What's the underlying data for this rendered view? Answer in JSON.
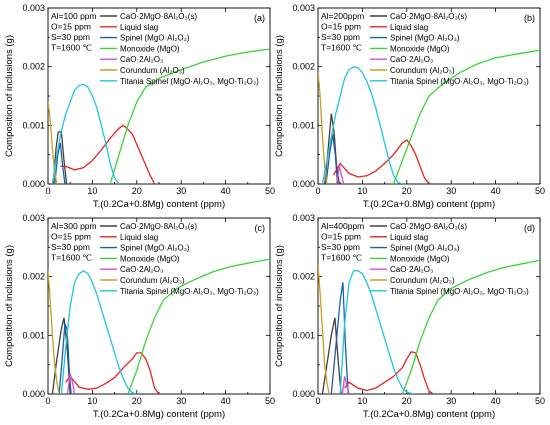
{
  "chart_data": [
    {
      "type": "line",
      "panel_label": "(a)",
      "conditions": [
        "Al=100 ppm",
        "O=15 ppm",
        "S=30 ppm",
        "T=1600 ℃"
      ],
      "xlabel": "T.(0.2Ca+0.8Mg) content (ppm)",
      "ylabel": "Composition of inclusions (g)",
      "xlim": [
        0,
        50
      ],
      "ylim": [
        0,
        0.003
      ],
      "x_ticks": [
        "0",
        "10",
        "20",
        "30",
        "40",
        "50"
      ],
      "y_ticks": [
        "0.000",
        "0.001",
        "0.002",
        "0.003"
      ],
      "legend_placement": "top-center",
      "series": [
        {
          "name": "CaO·2MgO·8Al₂O₃(s)",
          "color": "#404040",
          "x": [
            1.2,
            1.8,
            2.3,
            3.0,
            3.6,
            4.2
          ],
          "y": [
            0,
            0.0006,
            0.00088,
            0.0009,
            0.0004,
            0
          ]
        },
        {
          "name": "Liquid slag",
          "color": "#e8231f",
          "x": [
            2.8,
            4,
            6,
            8,
            10,
            12,
            14,
            16,
            17,
            19,
            21,
            23,
            24
          ],
          "y": [
            0.0003,
            0.0003,
            0.00024,
            0.00028,
            0.0004,
            0.00058,
            0.00078,
            0.00095,
            0.001,
            0.00085,
            0.0005,
            0.00015,
            0
          ]
        },
        {
          "name": "Spinel (MgO·Al₂O₃)",
          "color": "#1f5fa8",
          "x": [
            1.5,
            2.2,
            2.8,
            3.3,
            3.8
          ],
          "y": [
            0,
            0.0005,
            0.0007,
            0.0003,
            0
          ]
        },
        {
          "name": "Monoxide (MgO)",
          "color": "#3fd23a",
          "x": [
            14,
            16,
            18,
            20,
            22,
            25,
            30,
            35,
            40,
            45,
            50
          ],
          "y": [
            0,
            0.0005,
            0.001,
            0.0014,
            0.00165,
            0.0018,
            0.00195,
            0.00208,
            0.00218,
            0.00225,
            0.0023
          ]
        },
        {
          "name": "CaO·2Al₂O₃",
          "color": "#d04fd8",
          "x": [],
          "y": []
        },
        {
          "name": "Corundum (Al₂O₃)",
          "color": "#c9a020",
          "x": [
            0,
            0.5,
            1,
            1.5,
            2
          ],
          "y": [
            0.0014,
            0.0011,
            0.0006,
            0.0002,
            0
          ]
        },
        {
          "name": "Titania Spinel (MgO·Al₂O₃, MgO·Ti₂O₃)",
          "color": "#21c5e0",
          "x": [
            1,
            2,
            3,
            4,
            5,
            6,
            7,
            8,
            9,
            10,
            11,
            12,
            13,
            14,
            15,
            16
          ],
          "y": [
            0,
            0.0005,
            0.0009,
            0.0012,
            0.0014,
            0.0016,
            0.00168,
            0.0017,
            0.00165,
            0.0015,
            0.0013,
            0.001,
            0.0007,
            0.00035,
            0.0001,
            0
          ]
        }
      ]
    },
    {
      "type": "line",
      "panel_label": "(b)",
      "conditions": [
        "Al=200ppm",
        "O=15 ppm",
        "S=30 ppm",
        "T=1600 ℃"
      ],
      "xlabel": "T.(0.2Ca+0.8Mg) content (ppm)",
      "ylabel": "Composition of inclusions (g)",
      "xlim": [
        0,
        50
      ],
      "ylim": [
        0,
        0.003
      ],
      "x_ticks": [
        "0",
        "10",
        "20",
        "30",
        "40",
        "50"
      ],
      "y_ticks": [
        "0.000",
        "0.001",
        "0.002",
        "0.003"
      ],
      "legend_placement": "top-center",
      "series": [
        {
          "name": "CaO·2MgO·8Al₂O₃(s)",
          "color": "#404040",
          "x": [
            1.5,
            2.3,
            3.0,
            3.6,
            4.2,
            4.8
          ],
          "y": [
            0,
            0.0006,
            0.0012,
            0.0009,
            0.0003,
            0
          ]
        },
        {
          "name": "Liquid slag",
          "color": "#e8231f",
          "x": [
            3.5,
            5,
            7,
            9,
            11,
            13,
            15,
            17,
            19,
            20,
            21,
            22,
            23,
            24,
            25
          ],
          "y": [
            0.00015,
            0.00035,
            0.00018,
            0.00012,
            0.00014,
            0.00022,
            0.00035,
            0.0005,
            0.0007,
            0.00075,
            0.00065,
            0.0005,
            0.0003,
            0.0001,
            0
          ]
        },
        {
          "name": "Spinel (MgO·Al₂O₃)",
          "color": "#1f5fa8",
          "x": [
            1.8,
            2.6,
            3.3,
            3.9,
            4.4
          ],
          "y": [
            0,
            0.0005,
            0.00085,
            0.0005,
            0
          ]
        },
        {
          "name": "Monoxide (MgO)",
          "color": "#3fd23a",
          "x": [
            17,
            19,
            21,
            23,
            25,
            28,
            32,
            36,
            40,
            45,
            50
          ],
          "y": [
            0,
            0.0004,
            0.0008,
            0.0012,
            0.0015,
            0.0017,
            0.0019,
            0.00205,
            0.00215,
            0.00222,
            0.00228
          ]
        },
        {
          "name": "CaO·2Al₂O₃",
          "color": "#d04fd8",
          "x": [
            4.2,
            4.8,
            5.3,
            5.8
          ],
          "y": [
            0,
            0.0003,
            0.00015,
            0
          ]
        },
        {
          "name": "Corundum (Al₂O₃)",
          "color": "#c9a020",
          "x": [
            0,
            0.5,
            1,
            1.5,
            2
          ],
          "y": [
            0.0019,
            0.0015,
            0.0008,
            0.0003,
            0
          ]
        },
        {
          "name": "Titania Spinel (MgO·Al₂O₃, MgO·Ti₂O₃)",
          "color": "#21c5e0",
          "x": [
            1,
            2,
            3,
            4,
            5,
            6,
            7,
            8,
            9,
            10,
            11,
            12,
            13,
            14,
            15,
            16,
            17,
            18,
            19
          ],
          "y": [
            0,
            0.0004,
            0.0008,
            0.0012,
            0.0015,
            0.0018,
            0.00195,
            0.002,
            0.00198,
            0.0019,
            0.00175,
            0.00155,
            0.0013,
            0.001,
            0.0007,
            0.0004,
            0.00015,
            3e-05,
            0
          ]
        }
      ]
    },
    {
      "type": "line",
      "panel_label": "(c)",
      "conditions": [
        "Al=300 ppm",
        "O=15 ppm",
        "S=30 ppm",
        "T=1600 ℃"
      ],
      "xlabel": "T.(0.2Ca+0.8Mg) content (ppm)",
      "ylabel": "Composition of inclusions (g)",
      "xlim": [
        0,
        50
      ],
      "ylim": [
        0,
        0.003
      ],
      "x_ticks": [
        "0",
        "10",
        "20",
        "30",
        "40",
        "50"
      ],
      "y_ticks": [
        "0.000",
        "0.001",
        "0.002",
        "0.003"
      ],
      "legend_placement": "top-center",
      "series": [
        {
          "name": "CaO·2MgO·8Al₂O₃(s)",
          "color": "#404040",
          "x": [
            1,
            2,
            3,
            3.6,
            4.3,
            5
          ],
          "y": [
            0,
            0.0006,
            0.0011,
            0.0013,
            0.0008,
            0
          ]
        },
        {
          "name": "Liquid slag",
          "color": "#e8231f",
          "x": [
            4,
            5,
            7,
            9,
            11,
            13,
            15,
            17,
            19,
            20,
            21,
            22,
            23,
            24,
            25
          ],
          "y": [
            0.0002,
            0.0003,
            0.00012,
            8e-05,
            0.0001,
            0.00018,
            0.00028,
            0.00045,
            0.0006,
            0.0007,
            0.0007,
            0.0006,
            0.0004,
            0.0001,
            0
          ]
        },
        {
          "name": "Spinel (MgO·Al₂O₃)",
          "color": "#1f5fa8",
          "x": [
            2.5,
            3.2,
            3.8,
            4.3,
            4.8,
            5.2
          ],
          "y": [
            0,
            0.0006,
            0.0012,
            0.0011,
            0.0004,
            0
          ]
        },
        {
          "name": "Monoxide (MgO)",
          "color": "#3fd23a",
          "x": [
            18,
            20,
            22,
            24,
            26,
            29,
            33,
            37,
            41,
            45,
            50
          ],
          "y": [
            0,
            0.0004,
            0.0009,
            0.0013,
            0.0016,
            0.0018,
            0.00195,
            0.00208,
            0.00217,
            0.00223,
            0.0023
          ]
        },
        {
          "name": "CaO·2Al₂O₃",
          "color": "#d04fd8",
          "x": [
            4.4,
            5,
            5.5,
            6
          ],
          "y": [
            0,
            0.00035,
            0.0002,
            0
          ]
        },
        {
          "name": "Corundum (Al₂O₃)",
          "color": "#c9a020",
          "x": [
            0,
            0.5,
            1,
            1.5,
            2,
            2.5
          ],
          "y": [
            0.0021,
            0.0016,
            0.001,
            0.0005,
            0.0002,
            0
          ]
        },
        {
          "name": "Titania Spinel (MgO·Al₂O₃, MgO·Ti₂O₃)",
          "color": "#21c5e0",
          "x": [
            3,
            4,
            5,
            6,
            7,
            8,
            9,
            10,
            11,
            12,
            13,
            14,
            15,
            16,
            17,
            18,
            19,
            20
          ],
          "y": [
            0,
            0.0008,
            0.0015,
            0.0019,
            0.00205,
            0.0021,
            0.00205,
            0.0019,
            0.0017,
            0.00145,
            0.0012,
            0.00095,
            0.0007,
            0.00045,
            0.00025,
            0.0001,
            2e-05,
            0
          ]
        }
      ]
    },
    {
      "type": "line",
      "panel_label": "(d)",
      "conditions": [
        "Al=400ppm",
        "O=15 ppm",
        "S=30 ppm",
        "T=1600 ℃"
      ],
      "xlabel": "T.(0.2Ca+0.8Mg) content (ppm)",
      "ylabel": "Composition of inclusions (g)",
      "xlim": [
        0,
        50
      ],
      "ylim": [
        0,
        0.003
      ],
      "x_ticks": [
        "0",
        "10",
        "20",
        "30",
        "40",
        "50"
      ],
      "y_ticks": [
        "0.000",
        "0.001",
        "0.002",
        "0.003"
      ],
      "legend_placement": "top-center",
      "series": [
        {
          "name": "CaO·2MgO·8Al₂O₃(s)",
          "color": "#404040",
          "x": [
            1,
            2,
            3,
            3.8,
            4.5,
            5.2
          ],
          "y": [
            0,
            0.0005,
            0.001,
            0.0013,
            0.0006,
            0
          ]
        },
        {
          "name": "Liquid slag",
          "color": "#e8231f",
          "x": [
            6,
            7,
            9,
            11,
            13,
            15,
            17,
            19,
            20,
            21,
            22,
            23,
            24,
            25,
            26
          ],
          "y": [
            0.0001,
            0.0002,
            0.0001,
            6e-05,
            0.0001,
            0.0002,
            0.0003,
            0.00045,
            0.0006,
            0.00072,
            0.0007,
            0.0005,
            0.00025,
            5e-05,
            0
          ]
        },
        {
          "name": "Spinel (MgO·Al₂O₃)",
          "color": "#1f5fa8",
          "x": [
            3,
            4,
            5,
            5.6,
            6.2,
            6.8
          ],
          "y": [
            0,
            0.0008,
            0.0016,
            0.0019,
            0.0008,
            0
          ]
        },
        {
          "name": "Monoxide (MgO)",
          "color": "#3fd23a",
          "x": [
            19,
            21,
            23,
            25,
            27,
            30,
            34,
            38,
            42,
            46,
            50
          ],
          "y": [
            0,
            0.0004,
            0.0009,
            0.0013,
            0.0016,
            0.0018,
            0.00195,
            0.00207,
            0.00216,
            0.00222,
            0.00228
          ]
        },
        {
          "name": "CaO·2Al₂O₃",
          "color": "#d04fd8",
          "x": [
            5.5,
            6,
            6.5,
            7
          ],
          "y": [
            0,
            0.0003,
            0.00015,
            0
          ]
        },
        {
          "name": "Corundum (Al₂O₃)",
          "color": "#c9a020",
          "x": [
            0,
            0.5,
            1,
            1.5,
            2,
            2.5
          ],
          "y": [
            0.0022,
            0.0017,
            0.0011,
            0.0005,
            0.0002,
            0
          ]
        },
        {
          "name": "Titania Spinel (MgO·Al₂O₃, MgO·Ti₂O₃)",
          "color": "#21c5e0",
          "x": [
            5,
            6,
            7,
            8,
            9,
            10,
            11,
            12,
            13,
            14,
            15,
            16,
            17,
            18,
            19,
            20,
            21,
            22
          ],
          "y": [
            0,
            0.0012,
            0.0019,
            0.0021,
            0.0021,
            0.00205,
            0.0019,
            0.0017,
            0.00145,
            0.0012,
            0.00095,
            0.0007,
            0.00045,
            0.00025,
            0.0001,
            3e-05,
            1e-05,
            0
          ]
        }
      ]
    }
  ]
}
